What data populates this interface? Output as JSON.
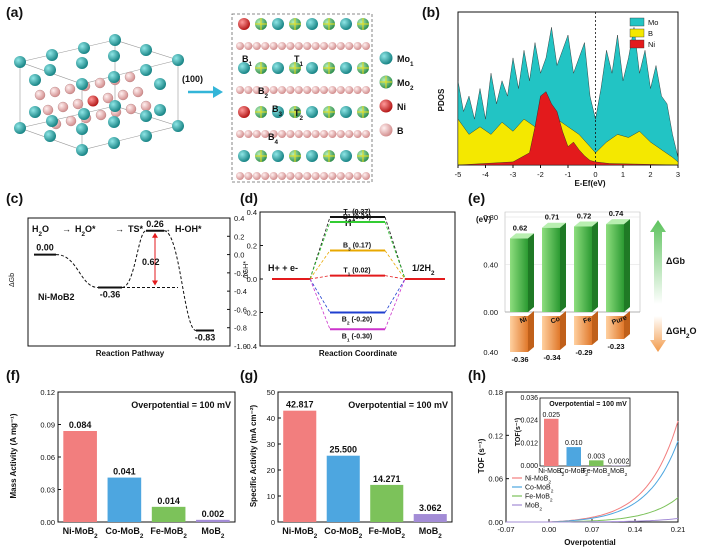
{
  "panel_a": {
    "label": "(a)",
    "plane": "(100)",
    "site_labels": [
      "B1",
      "T1",
      "B2",
      "B3",
      "T2",
      "B4"
    ],
    "legend": [
      {
        "name": "Mo1",
        "color": "#1a9e9e"
      },
      {
        "name": "Mo2",
        "color": "#3cb371"
      },
      {
        "name": "Ni",
        "color": "#e03030"
      },
      {
        "name": "B",
        "color": "#eab0b0"
      }
    ]
  },
  "panel_b": {
    "label": "(b)",
    "chart_data": {
      "type": "area",
      "ylabel": "PDOS",
      "xlabel": "E-Ef(eV)",
      "xlim": [
        -5,
        3
      ],
      "x_ticks": [
        "-5",
        "-4",
        "-3",
        "-2",
        "-1",
        "0",
        "1",
        "2",
        "3"
      ],
      "fermi_level": 0,
      "legend_position": "top-right",
      "series": [
        {
          "name": "Mo",
          "color": "#22c4c4",
          "values_x": [
            -5,
            -4.8,
            -4.6,
            -4.4,
            -4.2,
            -4,
            -3.8,
            -3.6,
            -3.4,
            -3.2,
            -3,
            -2.8,
            -2.6,
            -2.4,
            -2.2,
            -2,
            -1.8,
            -1.6,
            -1.4,
            -1.2,
            -1,
            -0.8,
            -0.6,
            -0.4,
            -0.2,
            0,
            0.2,
            0.4,
            0.6,
            0.8,
            1,
            1.2,
            1.4,
            1.6,
            1.8,
            2,
            2.2,
            2.4,
            2.6,
            2.8,
            3
          ],
          "values": [
            0.55,
            0.35,
            0.45,
            0.3,
            0.5,
            0.3,
            0.6,
            0.4,
            0.55,
            0.45,
            0.7,
            0.5,
            0.75,
            0.55,
            0.8,
            0.6,
            0.7,
            0.9,
            0.65,
            0.75,
            0.85,
            0.6,
            0.7,
            0.8,
            0.45,
            0.3,
            0.5,
            0.75,
            0.6,
            0.85,
            0.55,
            0.7,
            0.9,
            0.6,
            0.75,
            0.5,
            0.65,
            0.45,
            0.4,
            0.2,
            0.05
          ]
        },
        {
          "name": "B",
          "color": "#f4e800",
          "values_x": [
            -5,
            -4.6,
            -4.2,
            -3.8,
            -3.4,
            -3,
            -2.6,
            -2.2,
            -1.8,
            -1.4,
            -1,
            -0.6,
            -0.2,
            0,
            0.4,
            0.8,
            1.2,
            1.6,
            2,
            2.4,
            2.8,
            3
          ],
          "values": [
            0.3,
            0.2,
            0.25,
            0.2,
            0.28,
            0.22,
            0.3,
            0.25,
            0.35,
            0.3,
            0.25,
            0.2,
            0.12,
            0.08,
            0.15,
            0.2,
            0.18,
            0.22,
            0.15,
            0.1,
            0.05,
            0.02
          ]
        },
        {
          "name": "Ni",
          "color": "#e31a1c",
          "values_x": [
            -5,
            -3,
            -2.4,
            -2.2,
            -2,
            -1.8,
            -1.6,
            -1.4,
            -1.2,
            -1,
            -0.8,
            -0.6,
            -0.4,
            -0.2,
            0,
            0.5,
            3
          ],
          "values": [
            0,
            0.02,
            0.08,
            0.25,
            0.45,
            0.48,
            0.4,
            0.35,
            0.22,
            0.12,
            0.15,
            0.1,
            0.06,
            0.03,
            0.02,
            0.01,
            0
          ]
        }
      ]
    }
  },
  "panel_c": {
    "label": "(c)",
    "chart_data": {
      "type": "line",
      "ylabel": "ΔGb",
      "xlabel": "Reaction Pathway",
      "ylim": [
        -1.0,
        0.4
      ],
      "y_ticks": [
        "0.4",
        "0.2",
        "0.0",
        "-0.2",
        "-0.4",
        "-0.6",
        "-0.8",
        "-1.0"
      ],
      "steps": [
        "H2O",
        "H2O*",
        "TS*",
        "H-OH*"
      ],
      "values": [
        0.0,
        -0.36,
        0.26,
        -0.83
      ],
      "value_labels": [
        "0.00",
        "-0.36",
        "0.26",
        "-0.83"
      ],
      "barrier": 0.62,
      "barrier_label": "0.62",
      "note": "Ni-MoB2"
    }
  },
  "panel_d": {
    "label": "(d)",
    "chart_data": {
      "type": "line",
      "ylabel": "ΔGH*",
      "xlabel": "Reaction Coordinate",
      "left_state": "H+ + e-",
      "middle_state": "H*",
      "right_state": "1/2H2",
      "ylim": [
        -0.4,
        0.4
      ],
      "y_ticks": [
        "0.4",
        "0.2",
        "0.0",
        "-0.2",
        "-0.4"
      ],
      "series": [
        {
          "name": "T2 (0.37)",
          "value": 0.37,
          "color": "#111111"
        },
        {
          "name": "B4 (0.34)",
          "value": 0.34,
          "color": "#33cc33"
        },
        {
          "name": "B3 (0.17)",
          "value": 0.17,
          "color": "#e8a800"
        },
        {
          "name": "T1 (0.02)",
          "value": 0.02,
          "color": "#e31a1c"
        },
        {
          "name": "B2 (-0.20)",
          "value": -0.2,
          "color": "#1f3fcf"
        },
        {
          "name": "B1 (-0.30)",
          "value": -0.3,
          "color": "#cc33cc"
        }
      ]
    }
  },
  "panel_e": {
    "label": "(e)",
    "chart_data": {
      "type": "bar",
      "unit": "(eV)",
      "categories": [
        "Ni",
        "Co",
        "Fe",
        "Pure"
      ],
      "top_values": [
        0.62,
        0.71,
        0.72,
        0.74
      ],
      "top_labels": [
        "0.62",
        "0.71",
        "0.72",
        "0.74"
      ],
      "bottom_values": [
        -0.36,
        -0.34,
        -0.29,
        -0.23
      ],
      "bottom_labels": [
        "-0.36",
        "-0.34",
        "-0.29",
        "-0.23"
      ],
      "y_ticks_top": [
        "0.80",
        "0.40",
        "0.00"
      ],
      "y_ticks_bottom": [
        "0.40"
      ],
      "top_series": "ΔGb",
      "bottom_series": "ΔGH2O",
      "top_color": "#3cb043",
      "bottom_color": "#f29a4a"
    }
  },
  "panel_f": {
    "label": "(f)",
    "chart_data": {
      "type": "bar",
      "ylabel": "Mass Activity (A mg⁻¹)",
      "ylim": [
        0,
        0.12
      ],
      "y_ticks": [
        "0.00",
        "0.03",
        "0.06",
        "0.09",
        "0.12"
      ],
      "categories": [
        "Ni-MoB2",
        "Co-MoB2",
        "Fe-MoB2",
        "MoB2"
      ],
      "values": [
        0.084,
        0.041,
        0.014,
        0.002
      ],
      "value_labels": [
        "0.084",
        "0.041",
        "0.014",
        "0.002"
      ],
      "colors": [
        "#f27e7e",
        "#4da6e0",
        "#7cc25a",
        "#a38cd6"
      ],
      "annotation": "Overpotential = 100 mV"
    }
  },
  "panel_g": {
    "label": "(g)",
    "chart_data": {
      "type": "bar",
      "ylabel": "Specific Activity (mA cm⁻²)",
      "ylim": [
        0,
        50
      ],
      "y_ticks": [
        "0",
        "10",
        "20",
        "30",
        "40",
        "50"
      ],
      "categories": [
        "Ni-MoB2",
        "Co-MoB2",
        "Fe-MoB2",
        "MoB2"
      ],
      "values": [
        42.817,
        25.5,
        14.271,
        3.062
      ],
      "value_labels": [
        "42.817",
        "25.500",
        "14.271",
        "3.062"
      ],
      "colors": [
        "#f27e7e",
        "#4da6e0",
        "#7cc25a",
        "#a38cd6"
      ],
      "annotation": "Overpotential = 100 mV"
    }
  },
  "panel_h": {
    "label": "(h)",
    "chart_data": {
      "type": "line",
      "ylabel": "TOF (s⁻¹)",
      "xlabel": "Overpotential",
      "xlim": [
        -0.07,
        0.21
      ],
      "ylim": [
        0,
        0.18
      ],
      "x_ticks": [
        "-0.07",
        "0.00",
        "0.07",
        "0.14",
        "0.21"
      ],
      "y_ticks": [
        "0.00",
        "0.06",
        "0.12",
        "0.18"
      ],
      "series": [
        {
          "name": "Ni-MoB2",
          "color": "#f27e7e",
          "k": 0.0136
        },
        {
          "name": "Co-MoB2",
          "color": "#4da6e0",
          "k": 0.0109
        },
        {
          "name": "Fe-MoB2",
          "color": "#7cc25a",
          "k": 0.00327
        },
        {
          "name": "MoB2",
          "color": "#a38cd6",
          "k": 0.00047
        }
      ],
      "inset": {
        "ylabel": "TOF(s⁻¹)",
        "annotation": "Overpotential = 100 mV",
        "ylim": [
          0,
          0.036
        ],
        "y_ticks": [
          "0.000",
          "0.012",
          "0.024",
          "0.036"
        ],
        "categories": [
          "Ni-MoB2",
          "Co-MoB2",
          "Fe-MoB2",
          "MoB2"
        ],
        "values": [
          0.025,
          0.01,
          0.003,
          0.0002
        ],
        "value_labels": [
          "0.025",
          "0.010",
          "0.003",
          "0.0002"
        ]
      }
    }
  }
}
